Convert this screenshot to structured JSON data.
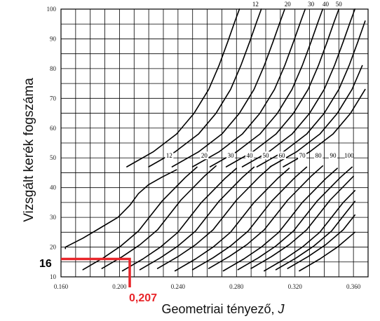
{
  "chart_data": {
    "type": "line",
    "title": "",
    "xlabel": "Geometriai tényező, ",
    "xlabel_symbol": "J",
    "ylabel": "Vizsgált kerék fogszáma",
    "xlim": [
      0.16,
      0.37
    ],
    "ylim": [
      10,
      100
    ],
    "x_tick_labels": [
      "0.160",
      "0.200",
      "0.240",
      "0.280",
      "0.320",
      "0.360"
    ],
    "y_tick_labels": [
      "10",
      "20",
      "30",
      "40",
      "50",
      "60",
      "70",
      "80",
      "90",
      "100"
    ],
    "grid": true,
    "upper_family_labels": [
      "12",
      "20",
      "30",
      "40",
      "50"
    ],
    "lower_family_labels": [
      "12",
      "20",
      "30",
      "40",
      "50",
      "60",
      "70",
      "80",
      "90",
      "100"
    ],
    "annotation": {
      "y_value_label": "16",
      "x_value_label": "0,207",
      "y": 16,
      "x": 0.207,
      "color": "#e8252a"
    }
  }
}
